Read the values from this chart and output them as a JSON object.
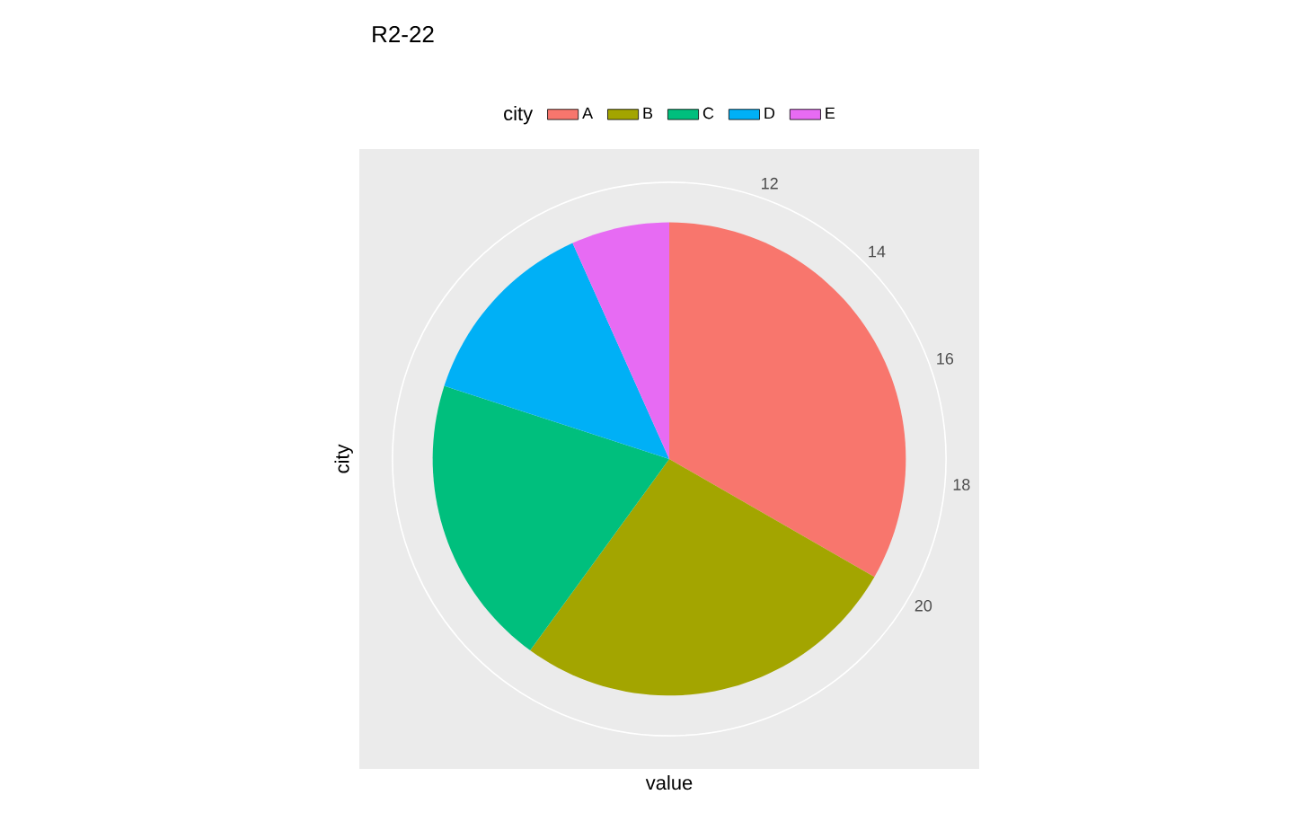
{
  "chart_data": {
    "type": "pie",
    "title": "R2-22",
    "legend_title": "city",
    "legend": "top",
    "xlabel": "value",
    "ylabel": "city",
    "categories": [
      "A",
      "B",
      "C",
      "D",
      "E"
    ],
    "values": [
      33.3,
      26.7,
      20,
      13.3,
      6.7
    ],
    "colors": [
      "#f8766d",
      "#a3a500",
      "#00bf7d",
      "#00b0f6",
      "#e76bf3"
    ],
    "annotations": [
      "12",
      "14",
      "16",
      "18",
      "20"
    ]
  }
}
